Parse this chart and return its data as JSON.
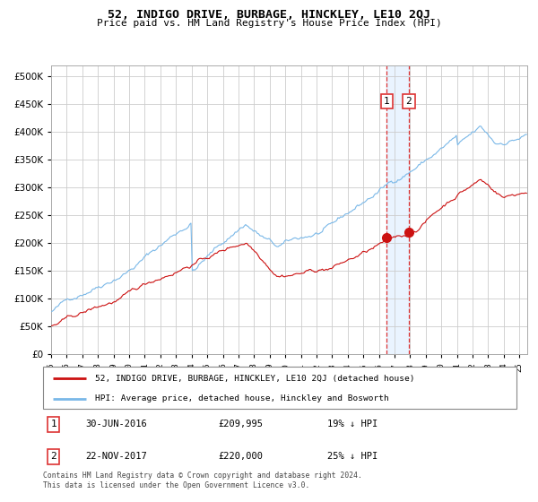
{
  "title": "52, INDIGO DRIVE, BURBAGE, HINCKLEY, LE10 2QJ",
  "subtitle": "Price paid vs. HM Land Registry's House Price Index (HPI)",
  "legend_line1": "52, INDIGO DRIVE, BURBAGE, HINCKLEY, LE10 2QJ (detached house)",
  "legend_line2": "HPI: Average price, detached house, Hinckley and Bosworth",
  "annotation1_label": "1",
  "annotation1_date": "30-JUN-2016",
  "annotation1_price": "£209,995",
  "annotation1_hpi": "19% ↓ HPI",
  "annotation1_year": 2016.5,
  "annotation1_value": 209995,
  "annotation2_label": "2",
  "annotation2_date": "22-NOV-2017",
  "annotation2_price": "£220,000",
  "annotation2_hpi": "25% ↓ HPI",
  "annotation2_year": 2017.917,
  "annotation2_value": 220000,
  "footer": "Contains HM Land Registry data © Crown copyright and database right 2024.\nThis data is licensed under the Open Government Licence v3.0.",
  "hpi_color": "#7ab8e8",
  "price_color": "#cc1111",
  "vline_color": "#dd3333",
  "ylim_min": 0,
  "ylim_max": 520000,
  "ytick_step": 50000,
  "xmin": 1995.0,
  "xmax": 2025.5,
  "bg_color": "#ffffff",
  "grid_color": "#cccccc",
  "shade_color": "#ddeeff"
}
